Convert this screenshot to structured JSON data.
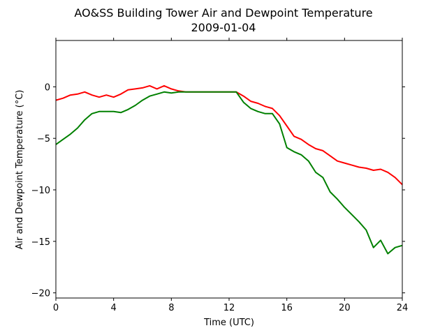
{
  "chart_data": {
    "type": "line",
    "title": "AO&SS Building Tower Air and Dewpoint Temperature",
    "subtitle": "2009-01-04",
    "xlabel": "Time (UTC)",
    "ylabel": "Air and Dewpoint Temperature (°C)",
    "xlim": [
      0,
      24
    ],
    "ylim": [
      -20.5,
      4.5
    ],
    "xticks": [
      0,
      4,
      8,
      12,
      16,
      20,
      24
    ],
    "yticks": [
      0,
      -5,
      -10,
      -15,
      -20
    ],
    "grid": false,
    "legend": "none",
    "series": [
      {
        "color": "#ff0000",
        "x": [
          0,
          0.5,
          1,
          1.5,
          2,
          2.5,
          3,
          3.5,
          4,
          4.5,
          5,
          5.5,
          6,
          6.5,
          7,
          7.5,
          8,
          8.5,
          9,
          10,
          11,
          12,
          12.5,
          13,
          13.5,
          14,
          14.5,
          15,
          15.5,
          16,
          16.5,
          17,
          17.5,
          18,
          18.5,
          19,
          19.5,
          20,
          20.5,
          21,
          21.5,
          22,
          22.5,
          23,
          23.5,
          24
        ],
        "y": [
          -1.3,
          -1.1,
          -0.8,
          -0.7,
          -0.5,
          -0.8,
          -1.0,
          -0.8,
          -1.0,
          -0.7,
          -0.3,
          -0.2,
          -0.1,
          0.1,
          -0.2,
          0.1,
          -0.2,
          -0.4,
          -0.5,
          -0.5,
          -0.5,
          -0.5,
          -0.5,
          -0.9,
          -1.4,
          -1.6,
          -1.9,
          -2.1,
          -2.8,
          -3.8,
          -4.8,
          -5.1,
          -5.6,
          -6.0,
          -6.2,
          -6.7,
          -7.2,
          -7.4,
          -7.6,
          -7.8,
          -7.9,
          -8.1,
          -8.0,
          -8.3,
          -8.8,
          -9.5
        ]
      },
      {
        "color": "#008000",
        "x": [
          0,
          0.5,
          1,
          1.5,
          2,
          2.5,
          3,
          3.5,
          4,
          4.5,
          5,
          5.5,
          6,
          6.5,
          7,
          7.5,
          8,
          8.5,
          9,
          10,
          11,
          12,
          12.5,
          13,
          13.5,
          14,
          14.5,
          15,
          15.5,
          16,
          16.5,
          17,
          17.5,
          18,
          18.5,
          19,
          19.5,
          20,
          20.5,
          21,
          21.5,
          22,
          22.5,
          23,
          23.5,
          24
        ],
        "y": [
          -5.6,
          -5.1,
          -4.6,
          -4.0,
          -3.2,
          -2.6,
          -2.4,
          -2.4,
          -2.4,
          -2.5,
          -2.2,
          -1.8,
          -1.3,
          -0.9,
          -0.7,
          -0.5,
          -0.6,
          -0.5,
          -0.5,
          -0.5,
          -0.5,
          -0.5,
          -0.5,
          -1.5,
          -2.1,
          -2.4,
          -2.6,
          -2.6,
          -3.6,
          -5.9,
          -6.3,
          -6.6,
          -7.2,
          -8.3,
          -8.8,
          -10.2,
          -10.9,
          -11.7,
          -12.4,
          -13.1,
          -13.9,
          -15.6,
          -14.9,
          -16.2,
          -15.6,
          -15.4
        ]
      }
    ]
  }
}
